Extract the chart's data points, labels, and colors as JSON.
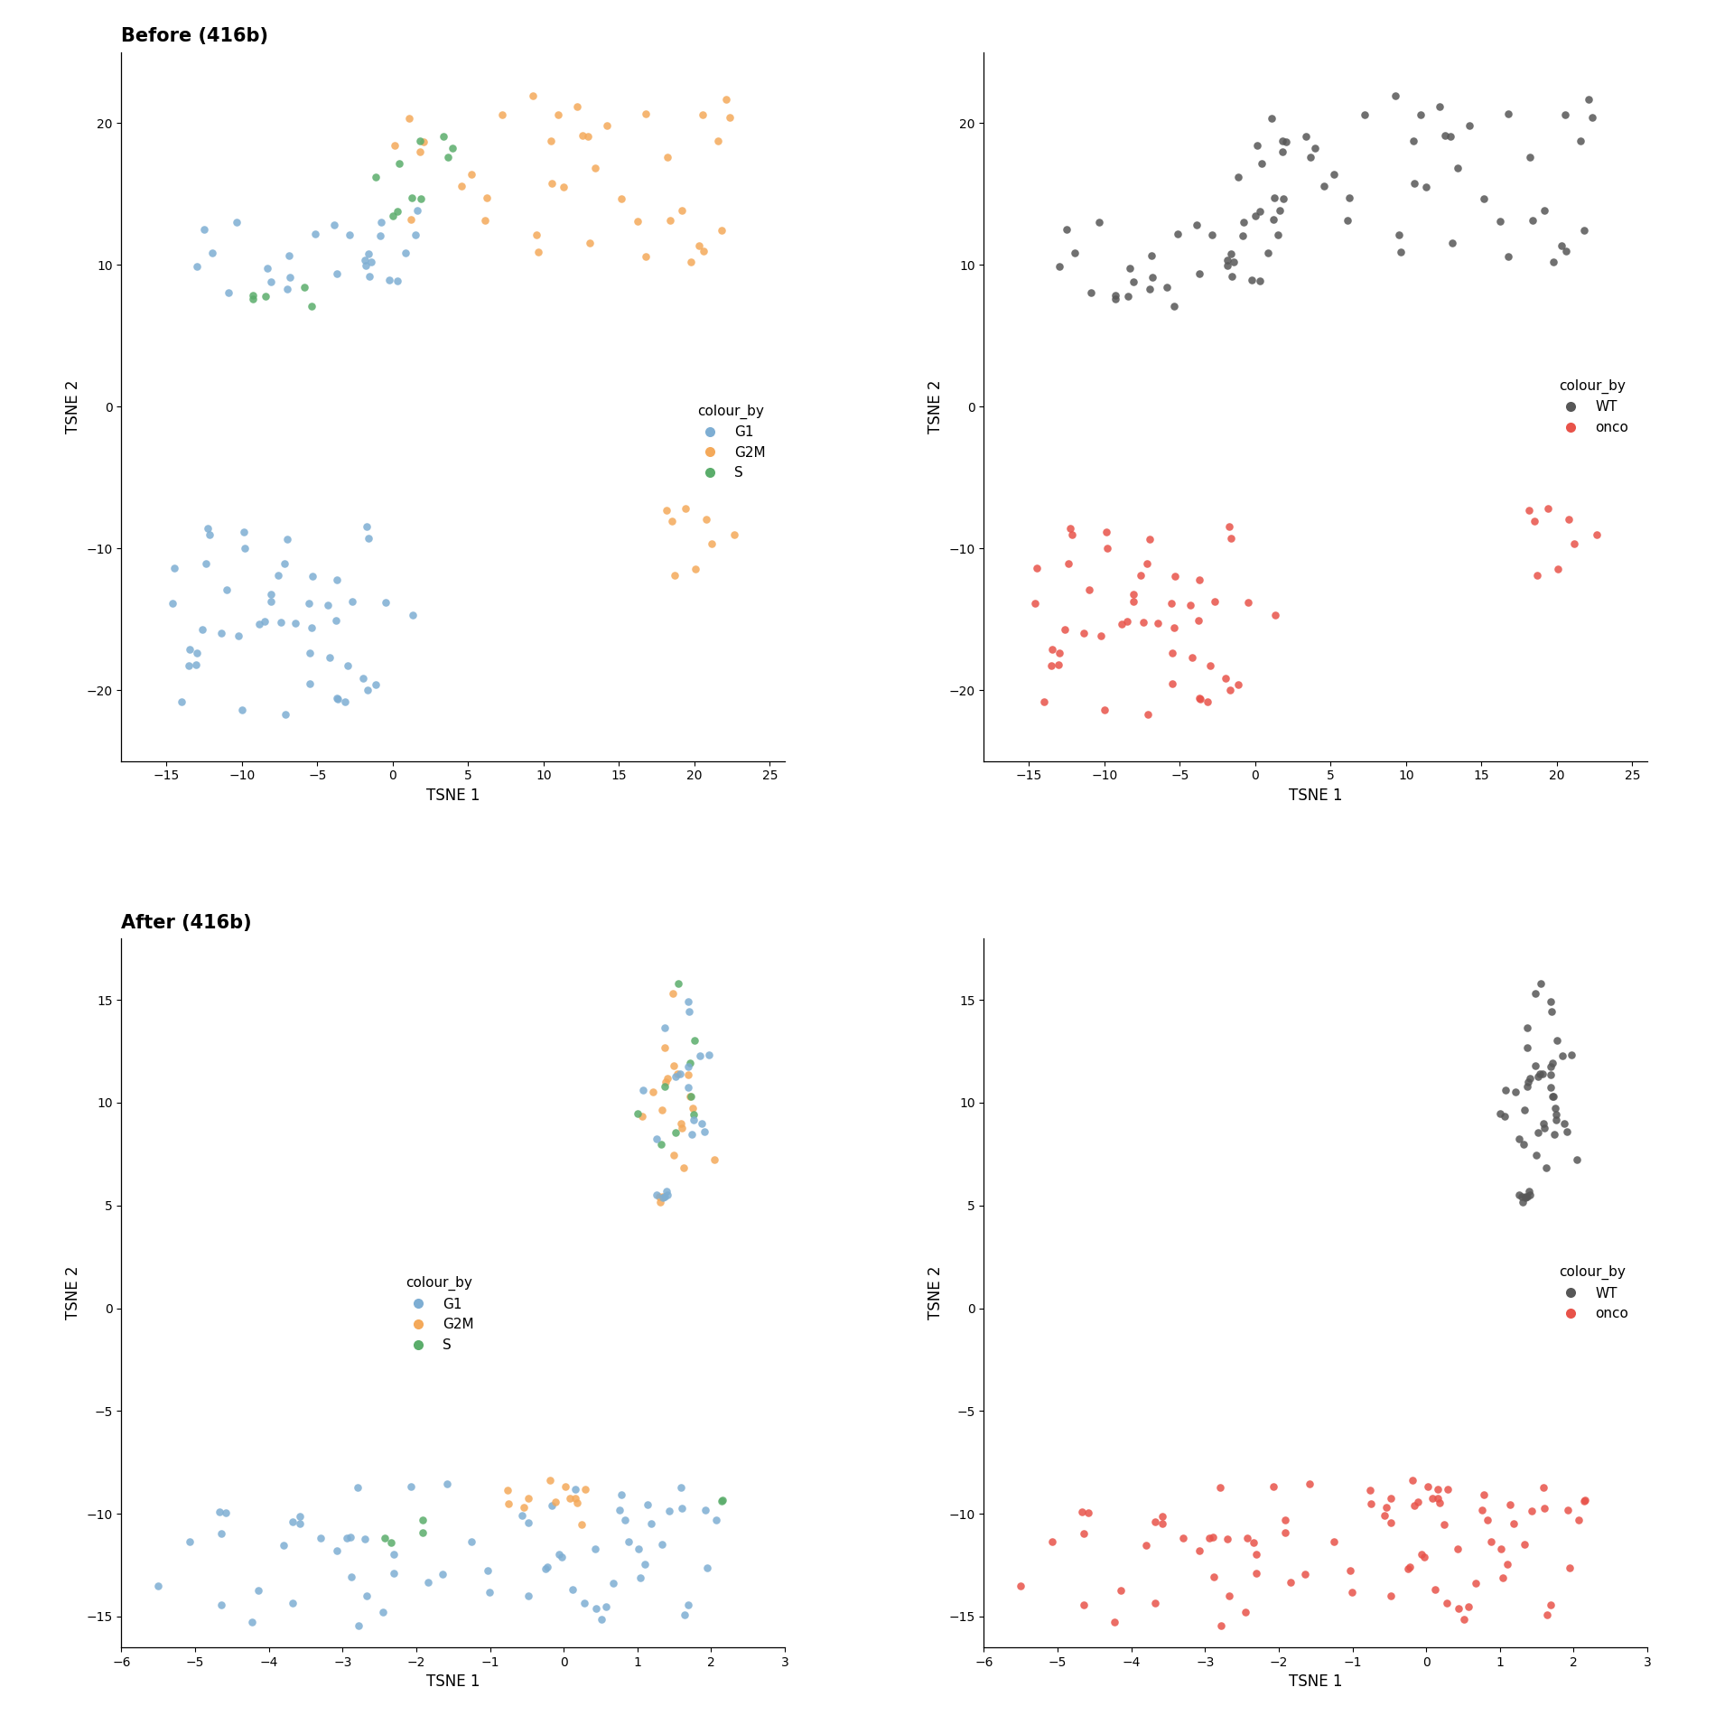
{
  "title_before": "Before (416b)",
  "title_after": "After (416b)",
  "xlabel": "TSNE 1",
  "ylabel": "TSNE 2",
  "colors": {
    "G1": "#7EAED3",
    "G2M": "#F4A95A",
    "S": "#5BAD6B",
    "WT": "#575757",
    "onco": "#E8534A"
  },
  "marker_size": 38,
  "alpha": 0.85,
  "font_size_title": 15,
  "font_size_label": 12,
  "font_size_legend_title": 11,
  "font_size_legend": 11
}
